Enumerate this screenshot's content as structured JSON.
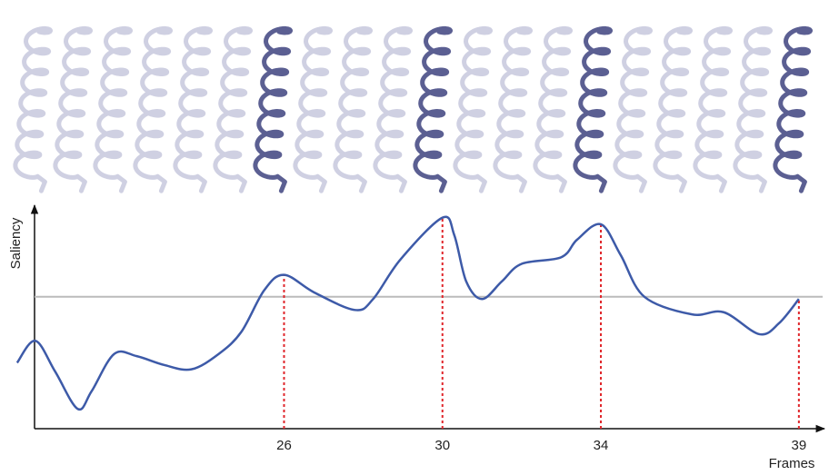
{
  "chart_data": {
    "type": "line",
    "y_label": "Saliency",
    "x_label": "Frames",
    "series": [
      {
        "color": "#3d5aa8",
        "x": [
          19.26,
          19.72,
          20.22,
          20.79,
          21.14,
          21.71,
          22.28,
          22.97,
          23.66,
          24.35,
          24.92,
          25.5,
          26,
          26.76,
          27.79,
          28.25,
          28.94,
          30,
          30.3,
          30.6,
          31.0,
          31.5,
          32.0,
          33.0,
          33.4,
          34,
          34.5,
          35.1,
          36.3,
          37.1,
          38.0,
          38.5,
          39
        ],
        "values": [
          0.3,
          0.4,
          0.26,
          0.09,
          0.17,
          0.34,
          0.33,
          0.29,
          0.27,
          0.34,
          0.44,
          0.63,
          0.7,
          0.62,
          0.54,
          0.59,
          0.77,
          0.96,
          0.88,
          0.67,
          0.59,
          0.67,
          0.75,
          0.78,
          0.86,
          0.93,
          0.79,
          0.6,
          0.52,
          0.53,
          0.43,
          0.48,
          0.59
        ]
      }
    ],
    "threshold": 0.6,
    "threshold_color": "#bbbbbb",
    "marker_color": "#e0262b",
    "xlim": [
      19.7,
      39.6
    ],
    "ylim": [
      0,
      1.0
    ],
    "xticks": [
      26,
      30,
      34,
      39
    ]
  }
}
